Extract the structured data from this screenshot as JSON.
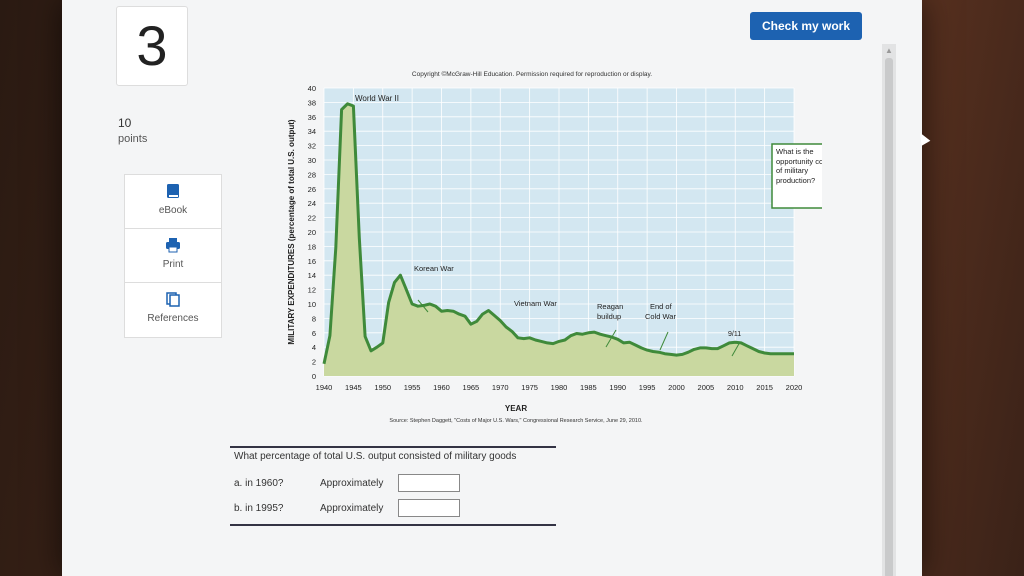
{
  "question": {
    "number": "3",
    "points_value": "10",
    "points_label": "points"
  },
  "tools": [
    {
      "label": "eBook",
      "icon": "book-icon"
    },
    {
      "label": "Print",
      "icon": "printer-icon"
    },
    {
      "label": "References",
      "icon": "references-icon"
    }
  ],
  "check_work_label": "Check my work",
  "colors": {
    "accent_button": "#1d62b1",
    "plot_background": "#d3e7f1",
    "line": "#3f8a3a",
    "area_fill": "#c9d8a0"
  },
  "chart_data": {
    "type": "area",
    "copyright": "Copyright ©McGraw-Hill Education. Permission required for reproduction or display.",
    "xlabel": "YEAR",
    "ylabel": "MILITARY EXPENDITURES (percentage of total U.S. output)",
    "source": "Source: Stephen Daggett, \"Costs of Major U.S. Wars,\" Congressional Research Service, June 29, 2010.",
    "xlim": [
      1940,
      2020
    ],
    "ylim": [
      0,
      40
    ],
    "x_ticks": [
      "1940",
      "1945",
      "1950",
      "1955",
      "1960",
      "1965",
      "1970",
      "1975",
      "1980",
      "1985",
      "1990",
      "1995",
      "2000",
      "2005",
      "2010",
      "2015",
      "2020"
    ],
    "y_ticks": [
      "0",
      "2",
      "4",
      "6",
      "8",
      "10",
      "12",
      "14",
      "16",
      "18",
      "20",
      "22",
      "24",
      "26",
      "28",
      "30",
      "32",
      "34",
      "36",
      "38",
      "40"
    ],
    "grid": true,
    "series": [
      {
        "x": [
          1940,
          1941,
          1942,
          1943,
          1944,
          1945,
          1946,
          1947,
          1948,
          1949,
          1950,
          1951,
          1952,
          1953,
          1954,
          1955,
          1956,
          1957,
          1958,
          1959,
          1960,
          1961,
          1962,
          1963,
          1964,
          1965,
          1966,
          1967,
          1968,
          1969,
          1970,
          1971,
          1972,
          1973,
          1974,
          1975,
          1976,
          1977,
          1978,
          1979,
          1980,
          1981,
          1982,
          1983,
          1984,
          1985,
          1986,
          1987,
          1988,
          1989,
          1990,
          1991,
          1992,
          1993,
          1994,
          1995,
          1996,
          1997,
          1998,
          1999,
          2000,
          2001,
          2002,
          2003,
          2004,
          2005,
          2006,
          2007,
          2008,
          2009,
          2010,
          2011,
          2012,
          2013,
          2014,
          2015,
          2016,
          2017,
          2018,
          2019,
          2020
        ],
        "y": [
          1.7,
          5.6,
          17.8,
          37.0,
          37.8,
          37.5,
          19.2,
          5.5,
          3.5,
          4.0,
          4.6,
          10.2,
          13.0,
          14.0,
          12.0,
          10.0,
          9.7,
          9.8,
          10.0,
          9.7,
          9.0,
          9.1,
          9.0,
          8.6,
          8.3,
          7.2,
          7.6,
          8.6,
          9.1,
          8.4,
          7.7,
          6.8,
          6.2,
          5.3,
          5.2,
          5.3,
          5.0,
          4.8,
          4.6,
          4.5,
          4.8,
          5.0,
          5.6,
          5.9,
          5.8,
          6.0,
          6.1,
          5.8,
          5.6,
          5.4,
          5.1,
          4.6,
          4.7,
          4.3,
          3.9,
          3.6,
          3.4,
          3.3,
          3.1,
          3.0,
          2.9,
          3.0,
          3.3,
          3.7,
          3.9,
          3.9,
          3.8,
          3.8,
          4.2,
          4.6,
          4.7,
          4.6,
          4.2,
          3.8,
          3.4,
          3.2,
          3.1,
          3.1,
          3.1,
          3.1,
          3.1
        ]
      }
    ],
    "annotations": [
      {
        "text": "World War II",
        "x": 1944,
        "y": 38
      },
      {
        "text": "Korean War",
        "x": 1953,
        "y": 16
      },
      {
        "text": "Vietnam War",
        "x": 1968,
        "y": 11
      },
      {
        "text": "Reagan buildup",
        "x": 1984,
        "y": 11
      },
      {
        "text": "End of Cold War",
        "x": 1991,
        "y": 11
      },
      {
        "text": "9/11",
        "x": 2001,
        "y": 7
      },
      {
        "text": "What is the opportunity cost of military production?",
        "x": 2010,
        "y": 30
      }
    ]
  },
  "questions": {
    "prompt": "What percentage of total U.S. output consisted of military goods",
    "approx_label": "Approximately",
    "items": [
      {
        "part": "a.  in 1960?",
        "value": ""
      },
      {
        "part": "b.  in 1995?",
        "value": ""
      }
    ]
  }
}
